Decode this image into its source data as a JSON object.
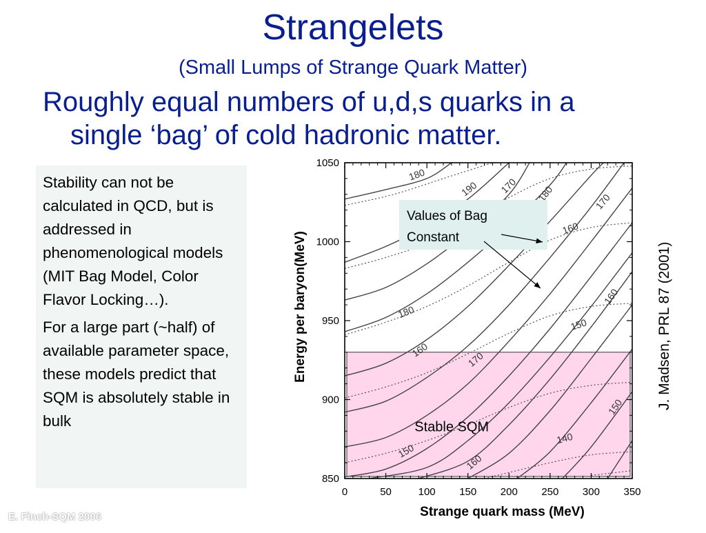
{
  "slide": {
    "title": "Strangelets",
    "subtitle": "(Small Lumps of Strange Quark Matter)",
    "headline_line1": "Roughly equal numbers of u,d,s quarks in a",
    "headline_line2": "single ‘bag’ of cold hadronic matter.",
    "paragraph1": "Stability can not be calculated in QCD, but is addressed in phenomenological models (MIT Bag Model, Color Flavor Locking…).",
    "paragraph2": "For a large part (~half) of available parameter space, these models predict that SQM is absolutely stable in bulk",
    "citation": "J. Madsen, PRL 87 (2001)",
    "footer": "E. Finch-SQM 2006"
  },
  "chart_data": {
    "type": "line",
    "xlabel": "Strange quark mass (MeV)",
    "ylabel": "Energy per baryon(MeV)",
    "xlim": [
      0,
      350
    ],
    "ylim": [
      850,
      1050
    ],
    "x_ticks": [
      "0",
      "50",
      "100",
      "150",
      "200",
      "250",
      "300",
      "350"
    ],
    "y_ticks": [
      "850",
      "900",
      "950",
      "1000",
      "1050"
    ],
    "grid": false,
    "stable_region": {
      "label": "Stable SQM",
      "y_range": [
        850,
        930
      ],
      "color": "#ffd6ec"
    },
    "annotation": {
      "text_line1": "Values of Bag",
      "text_line2": "Constant",
      "color": "#dff0ef"
    },
    "series": [
      {
        "style": "solid",
        "points": [
          [
            0,
            1027
          ],
          [
            50,
            1033
          ],
          [
            100,
            1040
          ],
          [
            130,
            1050
          ]
        ]
      },
      {
        "style": "dotted",
        "points": [
          [
            0,
            1023
          ],
          [
            60,
            1030
          ],
          [
            120,
            1040
          ],
          [
            180,
            1050
          ]
        ]
      },
      {
        "style": "solid",
        "points": [
          [
            0,
            987
          ],
          [
            50,
            997
          ],
          [
            100,
            1010
          ],
          [
            150,
            1027
          ],
          [
            200,
            1050
          ]
        ]
      },
      {
        "style": "dotted",
        "points": [
          [
            0,
            983
          ],
          [
            50,
            990
          ],
          [
            100,
            999
          ],
          [
            150,
            1013
          ],
          [
            200,
            1028
          ],
          [
            250,
            1040
          ],
          [
            300,
            1046
          ],
          [
            350,
            1048
          ]
        ]
      },
      {
        "style": "solid",
        "points": [
          [
            0,
            963
          ],
          [
            50,
            971
          ],
          [
            100,
            986
          ],
          [
            150,
            1006
          ],
          [
            200,
            1030
          ],
          [
            225,
            1050
          ]
        ]
      },
      {
        "style": "solid",
        "points": [
          [
            0,
            943
          ],
          [
            50,
            952
          ],
          [
            100,
            967
          ],
          [
            150,
            987
          ],
          [
            200,
            1010
          ],
          [
            250,
            1036
          ],
          [
            270,
            1050
          ]
        ]
      },
      {
        "style": "dotted",
        "points": [
          [
            0,
            941
          ],
          [
            50,
            949
          ],
          [
            100,
            959
          ],
          [
            150,
            972
          ],
          [
            200,
            987
          ],
          [
            250,
            1001
          ],
          [
            300,
            1009
          ],
          [
            350,
            1012
          ]
        ]
      },
      {
        "style": "solid",
        "points": [
          [
            0,
            915
          ],
          [
            50,
            923
          ],
          [
            100,
            938
          ],
          [
            150,
            959
          ],
          [
            200,
            985
          ],
          [
            250,
            1013
          ],
          [
            300,
            1042
          ],
          [
            315,
            1050
          ]
        ]
      },
      {
        "style": "solid",
        "points": [
          [
            0,
            892
          ],
          [
            50,
            899
          ],
          [
            100,
            914
          ],
          [
            150,
            934
          ],
          [
            200,
            960
          ],
          [
            250,
            990
          ],
          [
            300,
            1022
          ],
          [
            340,
            1050
          ]
        ]
      },
      {
        "style": "dotted",
        "points": [
          [
            0,
            901
          ],
          [
            50,
            908
          ],
          [
            100,
            917
          ],
          [
            150,
            929
          ],
          [
            200,
            942
          ],
          [
            250,
            953
          ],
          [
            300,
            959
          ],
          [
            350,
            961
          ]
        ]
      },
      {
        "style": "solid",
        "points": [
          [
            0,
            870
          ],
          [
            50,
            876
          ],
          [
            100,
            890
          ],
          [
            150,
            910
          ],
          [
            200,
            937
          ],
          [
            250,
            967
          ],
          [
            300,
            1000
          ],
          [
            350,
            1034
          ]
        ]
      },
      {
        "style": "solid",
        "points": [
          [
            0,
            851
          ],
          [
            50,
            856
          ],
          [
            100,
            869
          ],
          [
            150,
            889
          ],
          [
            200,
            915
          ],
          [
            250,
            945
          ],
          [
            300,
            978
          ],
          [
            350,
            1012
          ]
        ]
      },
      {
        "style": "dotted",
        "points": [
          [
            0,
            860
          ],
          [
            50,
            866
          ],
          [
            100,
            874
          ],
          [
            150,
            884
          ],
          [
            200,
            895
          ],
          [
            250,
            904
          ],
          [
            300,
            909
          ],
          [
            350,
            911
          ]
        ]
      },
      {
        "style": "solid",
        "points": [
          [
            30,
            850
          ],
          [
            100,
            857
          ],
          [
            150,
            874
          ],
          [
            200,
            898
          ],
          [
            250,
            927
          ],
          [
            300,
            959
          ],
          [
            350,
            993
          ]
        ]
      },
      {
        "style": "solid",
        "points": [
          [
            90,
            850
          ],
          [
            150,
            861
          ],
          [
            200,
            884
          ],
          [
            250,
            913
          ],
          [
            300,
            946
          ],
          [
            350,
            981
          ]
        ]
      },
      {
        "style": "dotted",
        "points": [
          [
            170,
            850
          ],
          [
            250,
            860
          ],
          [
            300,
            865
          ],
          [
            350,
            867
          ]
        ]
      },
      {
        "style": "solid",
        "points": [
          [
            150,
            850
          ],
          [
            200,
            866
          ],
          [
            250,
            893
          ],
          [
            300,
            926
          ],
          [
            350,
            960
          ]
        ]
      },
      {
        "style": "solid",
        "points": [
          [
            210,
            850
          ],
          [
            250,
            867
          ],
          [
            300,
            898
          ],
          [
            350,
            932
          ]
        ]
      },
      {
        "style": "dotted",
        "points": [
          [
            300,
            852
          ],
          [
            350,
            855
          ]
        ]
      },
      {
        "style": "solid",
        "points": [
          [
            265,
            850
          ],
          [
            300,
            870
          ],
          [
            350,
            905
          ]
        ]
      },
      {
        "style": "solid",
        "points": [
          [
            320,
            850
          ],
          [
            350,
            874
          ]
        ]
      }
    ],
    "contour_labels": [
      {
        "text": "180",
        "x": 88,
        "y": 1042,
        "angle": -20
      },
      {
        "text": "190",
        "x": 152,
        "y": 1033,
        "angle": -38
      },
      {
        "text": "170",
        "x": 200,
        "y": 1035,
        "angle": -45
      },
      {
        "text": "180",
        "x": 245,
        "y": 1030,
        "angle": -52
      },
      {
        "text": "170",
        "x": 315,
        "y": 1025,
        "angle": -50
      },
      {
        "text": "160",
        "x": 275,
        "y": 1008,
        "angle": -20
      },
      {
        "text": "180",
        "x": 75,
        "y": 955,
        "angle": -22
      },
      {
        "text": "160",
        "x": 92,
        "y": 931,
        "angle": -35
      },
      {
        "text": "170",
        "x": 160,
        "y": 925,
        "angle": -40
      },
      {
        "text": "160",
        "x": 325,
        "y": 965,
        "angle": -55
      },
      {
        "text": "150",
        "x": 285,
        "y": 947,
        "angle": -18
      },
      {
        "text": "150",
        "x": 330,
        "y": 895,
        "angle": -55
      },
      {
        "text": "140",
        "x": 268,
        "y": 875,
        "angle": -15
      },
      {
        "text": "150",
        "x": 75,
        "y": 867,
        "angle": -30
      },
      {
        "text": "160",
        "x": 158,
        "y": 860,
        "angle": -40
      }
    ]
  }
}
